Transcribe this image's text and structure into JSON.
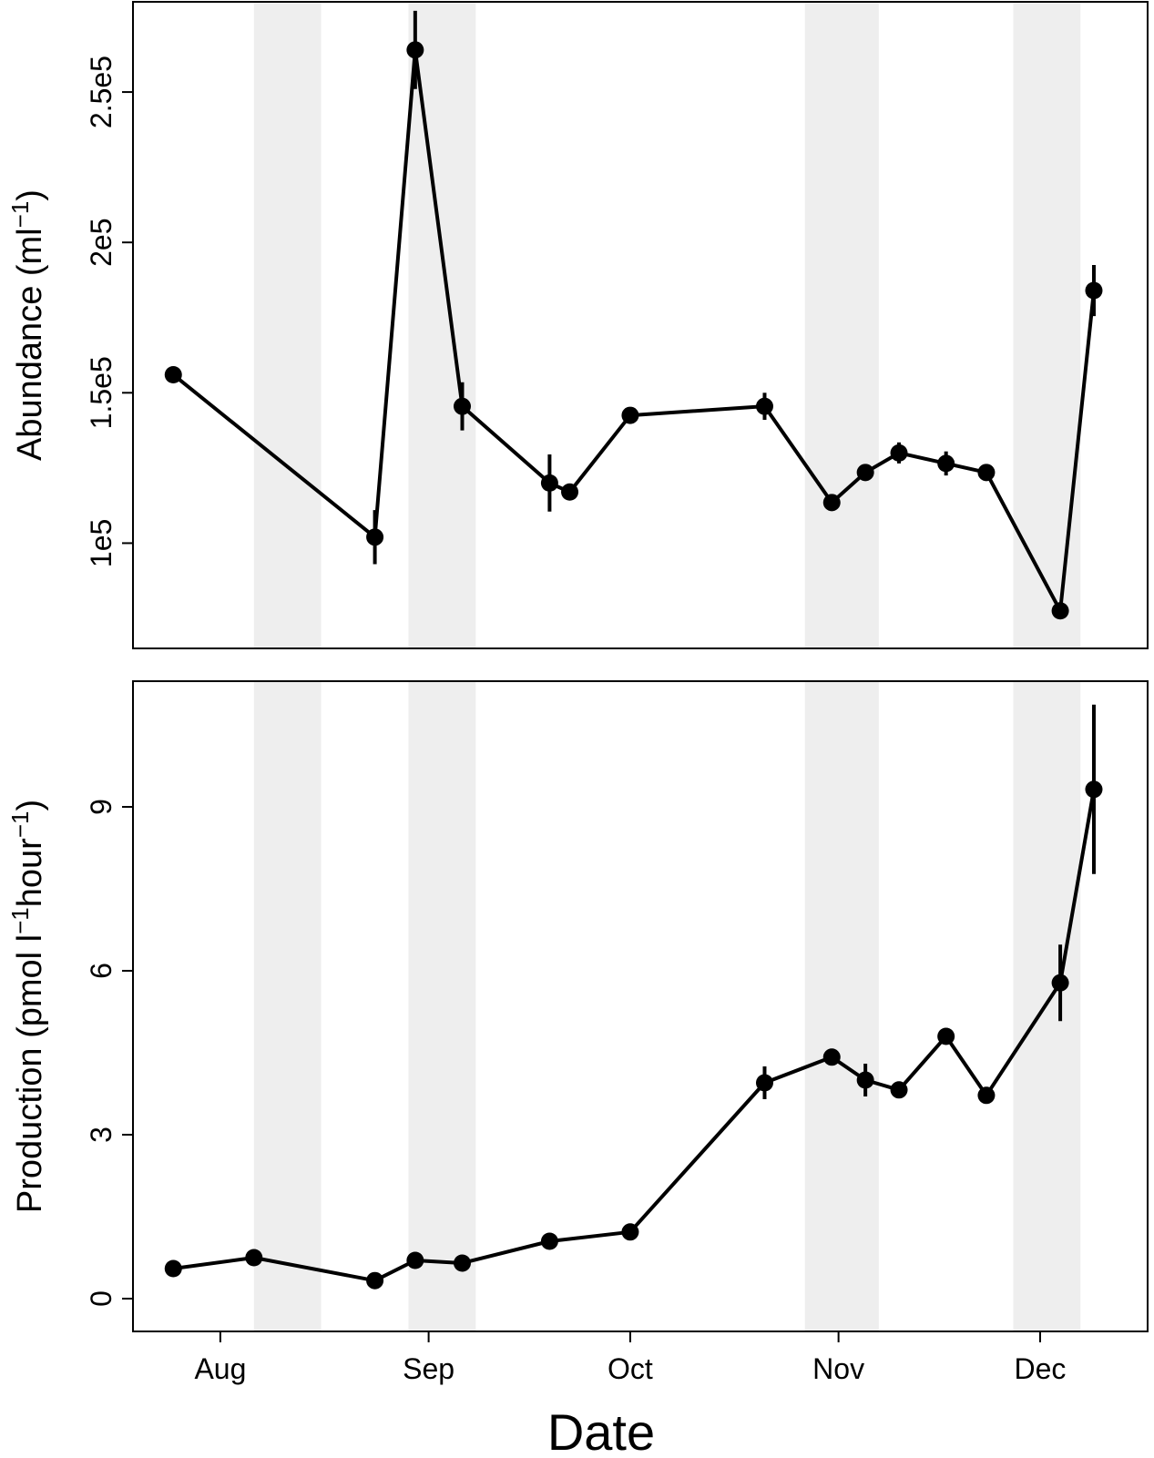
{
  "chart_data": [
    {
      "type": "line",
      "panel": "top",
      "xlabel": "",
      "ylabel": "Abundance (ml",
      "ylabel_sup": "−1",
      "ylabel_end": ")",
      "ylim": [
        65000,
        280000
      ],
      "yticks": [
        100000,
        150000,
        200000,
        250000
      ],
      "ytick_labels": [
        "1e5",
        "1.5e5",
        "2e5",
        "2.5e5"
      ],
      "grid": false,
      "points": [
        {
          "x": "2012-07-25",
          "y": 156000,
          "err": 0
        },
        {
          "x": "2012-08-24",
          "y": 102000,
          "err": 9000
        },
        {
          "x": "2012-08-30",
          "y": 264000,
          "err": 13000
        },
        {
          "x": "2012-09-06",
          "y": 145500,
          "err": 8000
        },
        {
          "x": "2012-09-19",
          "y": 120000,
          "err": 9500
        },
        {
          "x": "2012-09-22",
          "y": 117000,
          "err": 2500
        },
        {
          "x": "2012-10-01",
          "y": 142500,
          "err": 2000
        },
        {
          "x": "2012-10-21",
          "y": 145500,
          "err": 4500
        },
        {
          "x": "2012-10-31",
          "y": 113500,
          "err": 2000
        },
        {
          "x": "2012-11-05",
          "y": 123500,
          "err": 2000
        },
        {
          "x": "2012-11-10",
          "y": 130000,
          "err": 3500
        },
        {
          "x": "2012-11-17",
          "y": 126500,
          "err": 4000
        },
        {
          "x": "2012-11-23",
          "y": 123500,
          "err": 2000
        },
        {
          "x": "2012-12-04",
          "y": 77500,
          "err": 1500
        },
        {
          "x": "2012-12-09",
          "y": 184000,
          "err": 8500
        }
      ]
    },
    {
      "type": "line",
      "panel": "bottom",
      "xlabel": "Date",
      "ylabel": "Production (pmol l",
      "ylabel_sup1": "−1",
      "ylabel_mid": "hour",
      "ylabel_sup2": "−1",
      "ylabel_end": ")",
      "ylim": [
        -0.6,
        11.3
      ],
      "yticks": [
        0,
        3,
        6,
        9
      ],
      "ytick_labels": [
        "0",
        "3",
        "6",
        "9"
      ],
      "grid": false,
      "points": [
        {
          "x": "2012-07-25",
          "y": 0.55,
          "err": 0
        },
        {
          "x": "2012-08-06",
          "y": 0.75,
          "err": 0
        },
        {
          "x": "2012-08-24",
          "y": 0.33,
          "err": 0
        },
        {
          "x": "2012-08-30",
          "y": 0.7,
          "err": 0
        },
        {
          "x": "2012-09-06",
          "y": 0.65,
          "err": 0
        },
        {
          "x": "2012-09-19",
          "y": 1.05,
          "err": 0
        },
        {
          "x": "2012-10-01",
          "y": 1.22,
          "err": 0
        },
        {
          "x": "2012-10-21",
          "y": 3.95,
          "err": 0.3
        },
        {
          "x": "2012-10-31",
          "y": 4.42,
          "err": 0
        },
        {
          "x": "2012-11-05",
          "y": 4.0,
          "err": 0.3
        },
        {
          "x": "2012-11-10",
          "y": 3.82,
          "err": 0
        },
        {
          "x": "2012-11-17",
          "y": 4.8,
          "err": 0
        },
        {
          "x": "2012-11-23",
          "y": 3.72,
          "err": 0
        },
        {
          "x": "2012-12-04",
          "y": 5.78,
          "err": 0.7
        },
        {
          "x": "2012-12-09",
          "y": 9.32,
          "err": 1.55
        }
      ]
    }
  ],
  "x_axis": {
    "tick_labels": [
      "Aug",
      "Sep",
      "Oct",
      "Nov",
      "Dec"
    ],
    "tick_dates": [
      "2012-08-01",
      "2012-09-01",
      "2012-10-01",
      "2012-11-01",
      "2012-12-01"
    ],
    "xlim": [
      "2012-07-19",
      "2012-12-17"
    ],
    "title": "Date"
  },
  "shaded_periods": [
    [
      "2012-08-06",
      "2012-08-16"
    ],
    [
      "2012-08-29",
      "2012-09-08"
    ],
    [
      "2012-10-27",
      "2012-11-07"
    ],
    [
      "2012-11-27",
      "2012-12-07"
    ]
  ],
  "colors": {
    "series": "#000000",
    "shade": "#eeeeee"
  }
}
